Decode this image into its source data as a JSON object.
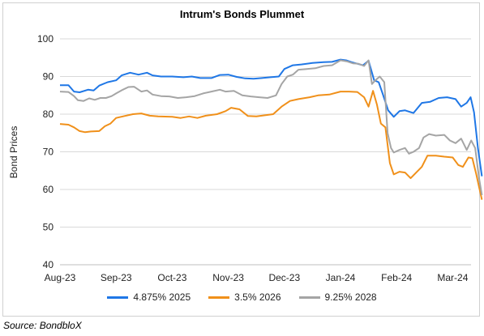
{
  "chart_data": {
    "type": "line",
    "title": "Intrum's Bonds Plummet",
    "ylabel": "Bond Prices",
    "xlabel": "",
    "ylim": [
      40,
      100
    ],
    "yticks": [
      40,
      50,
      60,
      70,
      80,
      90,
      100
    ],
    "x_tick_labels": [
      "Aug-23",
      "Sep-23",
      "Oct-23",
      "Nov-23",
      "Dec-23",
      "Jan-24",
      "Feb-24",
      "Mar-24"
    ],
    "grid": "horizontal",
    "legend_position": "bottom",
    "source": "Source: BondbloX",
    "series": [
      {
        "name": "4.875% 2025",
        "color": "#1f77e6",
        "points": [
          [
            0,
            87.7
          ],
          [
            0.15,
            87.7
          ],
          [
            0.25,
            86.0
          ],
          [
            0.35,
            85.8
          ],
          [
            0.5,
            86.5
          ],
          [
            0.6,
            86.3
          ],
          [
            0.7,
            87.6
          ],
          [
            0.85,
            88.5
          ],
          [
            1.0,
            89.0
          ],
          [
            1.1,
            90.3
          ],
          [
            1.25,
            91.0
          ],
          [
            1.4,
            90.5
          ],
          [
            1.55,
            91.0
          ],
          [
            1.65,
            90.3
          ],
          [
            1.8,
            90.0
          ],
          [
            2.0,
            90.0
          ],
          [
            2.2,
            89.8
          ],
          [
            2.35,
            90.0
          ],
          [
            2.5,
            89.6
          ],
          [
            2.7,
            89.6
          ],
          [
            2.85,
            90.4
          ],
          [
            3.0,
            90.5
          ],
          [
            3.15,
            89.9
          ],
          [
            3.3,
            89.5
          ],
          [
            3.45,
            89.4
          ],
          [
            3.6,
            89.6
          ],
          [
            3.75,
            89.8
          ],
          [
            3.9,
            90.0
          ],
          [
            4.0,
            92.0
          ],
          [
            4.15,
            93.0
          ],
          [
            4.3,
            93.2
          ],
          [
            4.5,
            93.6
          ],
          [
            4.7,
            93.8
          ],
          [
            4.85,
            93.9
          ],
          [
            5.0,
            94.5
          ],
          [
            5.1,
            94.3
          ],
          [
            5.2,
            93.8
          ],
          [
            5.3,
            93.4
          ],
          [
            5.4,
            93.0
          ],
          [
            5.5,
            94.2
          ],
          [
            5.6,
            89.0
          ],
          [
            5.68,
            88.5
          ],
          [
            5.75,
            85.5
          ],
          [
            5.85,
            81.0
          ],
          [
            5.95,
            79.3
          ],
          [
            6.05,
            80.8
          ],
          [
            6.15,
            81.0
          ],
          [
            6.3,
            80.3
          ],
          [
            6.45,
            83.0
          ],
          [
            6.6,
            83.3
          ],
          [
            6.75,
            84.3
          ],
          [
            6.9,
            84.5
          ],
          [
            7.05,
            84.0
          ],
          [
            7.15,
            82.0
          ],
          [
            7.25,
            83.0
          ],
          [
            7.32,
            84.5
          ],
          [
            7.38,
            80.5
          ],
          [
            7.45,
            71.0
          ],
          [
            7.52,
            63.5
          ]
        ]
      },
      {
        "name": "3.5% 2026",
        "color": "#f0901a",
        "points": [
          [
            0,
            77.4
          ],
          [
            0.15,
            77.2
          ],
          [
            0.25,
            76.5
          ],
          [
            0.35,
            75.5
          ],
          [
            0.45,
            75.2
          ],
          [
            0.55,
            75.4
          ],
          [
            0.7,
            75.5
          ],
          [
            0.8,
            76.8
          ],
          [
            0.9,
            77.5
          ],
          [
            1.0,
            79.0
          ],
          [
            1.15,
            79.5
          ],
          [
            1.3,
            80.0
          ],
          [
            1.45,
            80.2
          ],
          [
            1.6,
            79.6
          ],
          [
            1.75,
            79.4
          ],
          [
            2.0,
            79.3
          ],
          [
            2.15,
            79.0
          ],
          [
            2.3,
            79.4
          ],
          [
            2.45,
            79.0
          ],
          [
            2.6,
            79.6
          ],
          [
            2.8,
            80.0
          ],
          [
            2.95,
            80.8
          ],
          [
            3.05,
            81.7
          ],
          [
            3.2,
            81.3
          ],
          [
            3.35,
            79.5
          ],
          [
            3.5,
            79.4
          ],
          [
            3.65,
            79.7
          ],
          [
            3.8,
            80.0
          ],
          [
            3.95,
            82.0
          ],
          [
            4.1,
            83.5
          ],
          [
            4.25,
            84.0
          ],
          [
            4.45,
            84.5
          ],
          [
            4.6,
            85.0
          ],
          [
            4.8,
            85.2
          ],
          [
            5.0,
            86.0
          ],
          [
            5.15,
            86.0
          ],
          [
            5.3,
            85.9
          ],
          [
            5.42,
            84.5
          ],
          [
            5.5,
            82.0
          ],
          [
            5.58,
            86.2
          ],
          [
            5.65,
            82.5
          ],
          [
            5.72,
            77.5
          ],
          [
            5.8,
            76.5
          ],
          [
            5.88,
            67.0
          ],
          [
            5.95,
            64.0
          ],
          [
            6.05,
            64.7
          ],
          [
            6.15,
            64.5
          ],
          [
            6.25,
            63.0
          ],
          [
            6.35,
            64.5
          ],
          [
            6.45,
            66.0
          ],
          [
            6.55,
            69.0
          ],
          [
            6.7,
            69.0
          ],
          [
            6.85,
            68.7
          ],
          [
            7.0,
            68.5
          ],
          [
            7.1,
            66.5
          ],
          [
            7.18,
            66.0
          ],
          [
            7.28,
            68.5
          ],
          [
            7.35,
            68.3
          ],
          [
            7.42,
            64.0
          ],
          [
            7.48,
            60.0
          ],
          [
            7.52,
            57.3
          ]
        ]
      },
      {
        "name": "9.25% 2028",
        "color": "#a5a5a5",
        "points": [
          [
            0,
            86.0
          ],
          [
            0.15,
            85.9
          ],
          [
            0.25,
            84.8
          ],
          [
            0.32,
            83.7
          ],
          [
            0.42,
            83.5
          ],
          [
            0.52,
            84.2
          ],
          [
            0.62,
            83.8
          ],
          [
            0.72,
            84.3
          ],
          [
            0.82,
            84.3
          ],
          [
            0.92,
            84.8
          ],
          [
            1.0,
            85.5
          ],
          [
            1.12,
            86.5
          ],
          [
            1.22,
            87.2
          ],
          [
            1.32,
            87.3
          ],
          [
            1.45,
            86.0
          ],
          [
            1.55,
            86.3
          ],
          [
            1.65,
            85.2
          ],
          [
            1.8,
            84.8
          ],
          [
            1.95,
            84.7
          ],
          [
            2.1,
            84.3
          ],
          [
            2.25,
            84.5
          ],
          [
            2.4,
            84.8
          ],
          [
            2.55,
            85.5
          ],
          [
            2.7,
            86.0
          ],
          [
            2.85,
            86.5
          ],
          [
            2.95,
            86.0
          ],
          [
            3.1,
            86.2
          ],
          [
            3.25,
            85.0
          ],
          [
            3.4,
            84.7
          ],
          [
            3.55,
            84.5
          ],
          [
            3.7,
            84.3
          ],
          [
            3.85,
            85.0
          ],
          [
            3.95,
            88.0
          ],
          [
            4.05,
            90.0
          ],
          [
            4.15,
            90.5
          ],
          [
            4.25,
            91.8
          ],
          [
            4.4,
            92.0
          ],
          [
            4.55,
            92.2
          ],
          [
            4.7,
            92.8
          ],
          [
            4.85,
            93.0
          ],
          [
            5.0,
            94.3
          ],
          [
            5.12,
            94.0
          ],
          [
            5.22,
            93.5
          ],
          [
            5.32,
            93.4
          ],
          [
            5.42,
            92.8
          ],
          [
            5.5,
            94.3
          ],
          [
            5.56,
            88.0
          ],
          [
            5.62,
            89.0
          ],
          [
            5.7,
            90.0
          ],
          [
            5.78,
            88.5
          ],
          [
            5.84,
            75.0
          ],
          [
            5.9,
            71.0
          ],
          [
            5.95,
            69.8
          ],
          [
            6.05,
            70.5
          ],
          [
            6.15,
            71.0
          ],
          [
            6.22,
            69.5
          ],
          [
            6.3,
            70.0
          ],
          [
            6.4,
            71.0
          ],
          [
            6.48,
            73.8
          ],
          [
            6.58,
            74.7
          ],
          [
            6.7,
            74.3
          ],
          [
            6.85,
            74.5
          ],
          [
            6.95,
            73.0
          ],
          [
            7.05,
            72.3
          ],
          [
            7.15,
            73.5
          ],
          [
            7.25,
            70.5
          ],
          [
            7.33,
            73.0
          ],
          [
            7.4,
            71.0
          ],
          [
            7.47,
            63.0
          ],
          [
            7.52,
            58.5
          ]
        ]
      }
    ]
  }
}
